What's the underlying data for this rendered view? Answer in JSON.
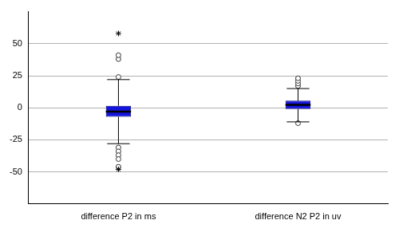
{
  "chart_data": {
    "type": "box",
    "categories": [
      "difference P2 in ms",
      "difference N2 P2 in uv"
    ],
    "q1": [
      -7,
      -1
    ],
    "median": [
      -3,
      2.3
    ],
    "q3": [
      1.5,
      5.5
    ],
    "whisker_low": [
      -28,
      -11
    ],
    "whisker_high": [
      22,
      15
    ],
    "outliers": [
      [
        24,
        38,
        41,
        -31,
        -34,
        -37,
        -40,
        -46
      ],
      [
        17,
        19,
        21,
        23,
        -12
      ]
    ],
    "extremes": [
      [
        58,
        -48
      ],
      []
    ],
    "color": "#1414dc",
    "ylim": [
      -75,
      75
    ],
    "yticks": [
      -50,
      -25,
      0,
      25,
      50
    ],
    "grid": true
  }
}
